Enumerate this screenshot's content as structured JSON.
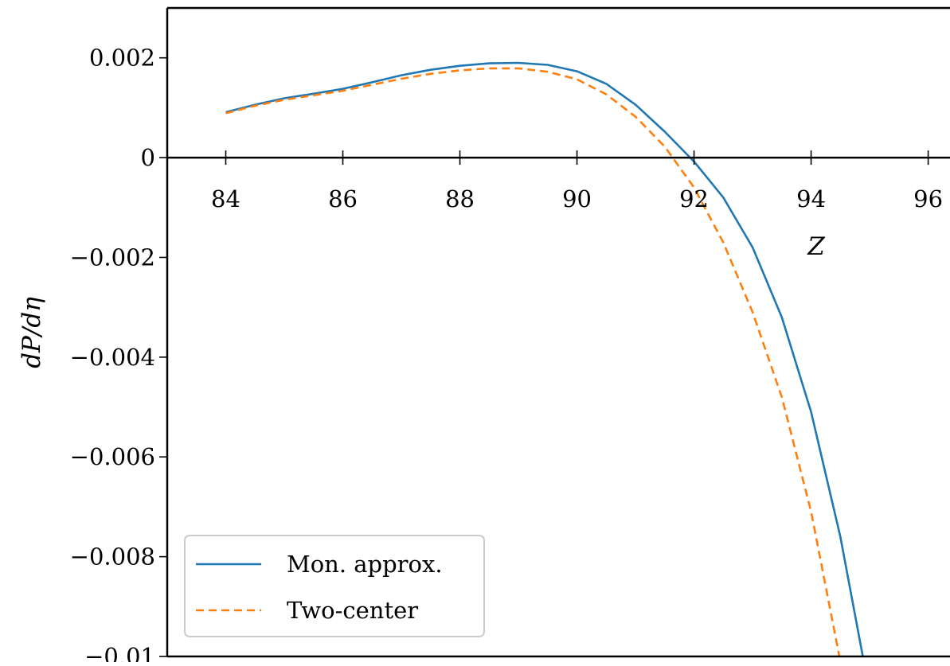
{
  "chart_data": {
    "type": "line",
    "title": "",
    "xlabel": "Z",
    "ylabel": "dP/dη",
    "xlim": [
      83.0,
      96.4
    ],
    "ylim": [
      -0.01,
      0.003
    ],
    "xticks": [
      84,
      86,
      88,
      90,
      92,
      94,
      96
    ],
    "xtick_labels": [
      "84",
      "86",
      "88",
      "90",
      "92",
      "94",
      "96"
    ],
    "yticks": [
      -0.01,
      -0.008,
      -0.006,
      -0.004,
      -0.002,
      0,
      0.002
    ],
    "ytick_labels": [
      "−0.01",
      "−0.008",
      "−0.006",
      "−0.004",
      "−0.002",
      "0",
      "0.002"
    ],
    "x_axis_at_y": 0,
    "grid": false,
    "legend_position": "lower-left",
    "series": [
      {
        "name": "Mon. approx.",
        "color": "#1f77b4",
        "style": "solid",
        "x": [
          84,
          84.5,
          85,
          85.5,
          86,
          86.5,
          87,
          87.5,
          88,
          88.5,
          89,
          89.5,
          90,
          90.5,
          91,
          91.5,
          92,
          92.5,
          93,
          93.5,
          94,
          94.5,
          94.9
        ],
        "y": [
          0.00091,
          0.00106,
          0.00119,
          0.00128,
          0.00138,
          0.00151,
          0.00165,
          0.00176,
          0.00184,
          0.00189,
          0.0019,
          0.00186,
          0.00173,
          0.00148,
          0.00106,
          0.00052,
          -8e-05,
          -0.0008,
          -0.0018,
          -0.0032,
          -0.0051,
          -0.0076,
          -0.0101
        ]
      },
      {
        "name": "Two-center",
        "color": "#ff7f0e",
        "style": "dashed",
        "x": [
          84,
          84.5,
          85,
          85.5,
          86,
          86.5,
          87,
          87.5,
          88,
          88.5,
          89,
          89.5,
          90,
          90.5,
          91,
          91.5,
          92,
          92.5,
          93,
          93.5,
          94,
          94.5
        ],
        "y": [
          0.00089,
          0.00104,
          0.00116,
          0.00125,
          0.00134,
          0.00146,
          0.00158,
          0.00168,
          0.00175,
          0.00179,
          0.00179,
          0.00172,
          0.00157,
          0.00127,
          0.00082,
          0.00022,
          -0.0006,
          -0.0017,
          -0.0031,
          -0.0048,
          -0.0071,
          -0.0101
        ]
      }
    ]
  }
}
